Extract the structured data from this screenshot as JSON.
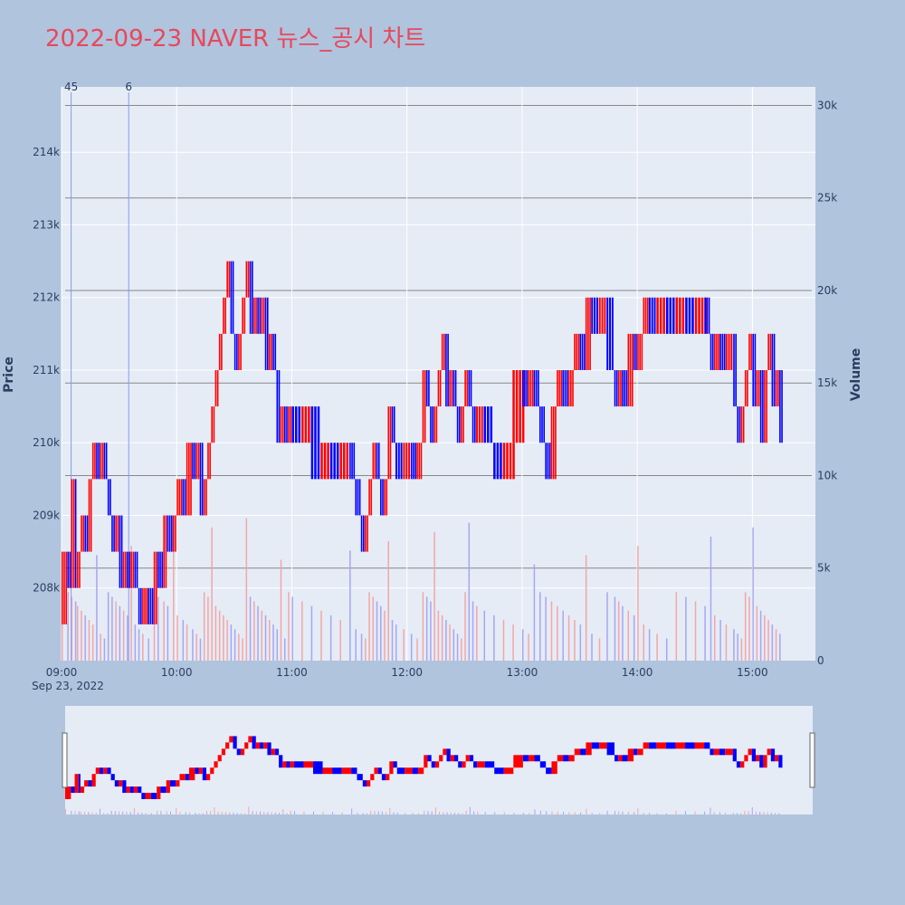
{
  "title": "2022-09-23 NAVER 뉴스_공시 차트",
  "colors": {
    "page_bg": "#b0c4de",
    "plot_bg": "#e5ecf6",
    "title": "#e8485a",
    "up": "#ff0000",
    "down": "#0000ff",
    "up_volume": "#f4a6a6",
    "down_volume": "#a6a6f4",
    "volume_gridline": "#888888",
    "news_line": "#8a9ae8"
  },
  "chart_data": {
    "type": "candlestick+volume",
    "date_label": "Sep 23, 2022",
    "x_range": [
      "09:00",
      "15:30"
    ],
    "x_ticks": [
      "09:00",
      "10:00",
      "11:00",
      "12:00",
      "13:00",
      "14:00",
      "15:00"
    ],
    "y_axis": {
      "title": "Price",
      "range": [
        207000,
        214900
      ],
      "ticks": [
        "208k",
        "209k",
        "210k",
        "211k",
        "212k",
        "213k",
        "214k"
      ]
    },
    "y2_axis": {
      "title": "Volume",
      "range": [
        0,
        31000
      ],
      "ticks": [
        "0",
        "5k",
        "10k",
        "15k",
        "20k",
        "25k",
        "30k"
      ]
    },
    "news_markers": [
      {
        "time": "09:05",
        "label": "45"
      },
      {
        "time": "09:35",
        "label": "6"
      }
    ],
    "price_series": [
      [
        "09:00",
        207500
      ],
      [
        "09:03",
        208500
      ],
      [
        "09:05",
        208000
      ],
      [
        "09:07",
        209500
      ],
      [
        "09:08",
        208000
      ],
      [
        "09:10",
        208500
      ],
      [
        "09:12",
        209000
      ],
      [
        "09:14",
        208500
      ],
      [
        "09:16",
        209500
      ],
      [
        "09:18",
        210000
      ],
      [
        "09:20",
        209500
      ],
      [
        "09:22",
        210000
      ],
      [
        "09:24",
        209500
      ],
      [
        "09:26",
        209000
      ],
      [
        "09:28",
        208500
      ],
      [
        "09:30",
        209000
      ],
      [
        "09:32",
        208000
      ],
      [
        "09:34",
        208500
      ],
      [
        "09:36",
        208000
      ],
      [
        "09:38",
        208500
      ],
      [
        "09:40",
        208000
      ],
      [
        "09:42",
        207500
      ],
      [
        "09:45",
        208000
      ],
      [
        "09:48",
        207500
      ],
      [
        "09:50",
        208500
      ],
      [
        "09:53",
        208000
      ],
      [
        "09:55",
        209000
      ],
      [
        "09:58",
        208500
      ],
      [
        "10:00",
        209000
      ],
      [
        "10:03",
        209500
      ],
      [
        "10:05",
        209000
      ],
      [
        "10:08",
        210000
      ],
      [
        "10:10",
        209500
      ],
      [
        "10:12",
        210000
      ],
      [
        "10:14",
        209000
      ],
      [
        "10:16",
        209500
      ],
      [
        "10:18",
        210000
      ],
      [
        "10:20",
        210500
      ],
      [
        "10:22",
        211000
      ],
      [
        "10:24",
        211500
      ],
      [
        "10:26",
        212000
      ],
      [
        "10:28",
        212500
      ],
      [
        "10:30",
        211500
      ],
      [
        "10:32",
        211000
      ],
      [
        "10:34",
        211500
      ],
      [
        "10:36",
        212000
      ],
      [
        "10:38",
        212500
      ],
      [
        "10:40",
        211500
      ],
      [
        "10:42",
        212000
      ],
      [
        "10:44",
        211500
      ],
      [
        "10:46",
        212000
      ],
      [
        "10:48",
        211000
      ],
      [
        "10:50",
        211500
      ],
      [
        "10:52",
        211000
      ],
      [
        "10:54",
        210000
      ],
      [
        "10:56",
        210500
      ],
      [
        "10:58",
        210000
      ],
      [
        "11:00",
        210500
      ],
      [
        "11:05",
        210000
      ],
      [
        "11:10",
        210500
      ],
      [
        "11:15",
        209500
      ],
      [
        "11:20",
        210000
      ],
      [
        "11:25",
        209500
      ],
      [
        "11:30",
        210000
      ],
      [
        "11:33",
        209500
      ],
      [
        "11:36",
        209000
      ],
      [
        "11:38",
        208500
      ],
      [
        "11:40",
        209000
      ],
      [
        "11:42",
        209500
      ],
      [
        "11:44",
        210000
      ],
      [
        "11:46",
        209500
      ],
      [
        "11:48",
        209000
      ],
      [
        "11:50",
        209500
      ],
      [
        "11:52",
        210500
      ],
      [
        "11:54",
        210000
      ],
      [
        "11:58",
        209500
      ],
      [
        "12:02",
        210000
      ],
      [
        "12:05",
        209500
      ],
      [
        "12:08",
        210000
      ],
      [
        "12:10",
        211000
      ],
      [
        "12:12",
        210500
      ],
      [
        "12:14",
        210000
      ],
      [
        "12:16",
        210500
      ],
      [
        "12:18",
        211000
      ],
      [
        "12:20",
        211500
      ],
      [
        "12:22",
        210500
      ],
      [
        "12:24",
        211000
      ],
      [
        "12:26",
        210500
      ],
      [
        "12:28",
        210000
      ],
      [
        "12:30",
        210500
      ],
      [
        "12:32",
        211000
      ],
      [
        "12:34",
        210500
      ],
      [
        "12:36",
        210000
      ],
      [
        "12:40",
        210500
      ],
      [
        "12:45",
        210000
      ],
      [
        "12:50",
        209500
      ],
      [
        "12:55",
        210000
      ],
      [
        "13:00",
        211000
      ],
      [
        "13:03",
        210500
      ],
      [
        "13:06",
        211000
      ],
      [
        "13:09",
        210500
      ],
      [
        "13:12",
        210000
      ],
      [
        "13:15",
        209500
      ],
      [
        "13:18",
        210500
      ],
      [
        "13:21",
        211000
      ],
      [
        "13:24",
        210500
      ],
      [
        "13:27",
        211000
      ],
      [
        "13:30",
        211500
      ],
      [
        "13:33",
        211000
      ],
      [
        "13:36",
        212000
      ],
      [
        "13:40",
        211500
      ],
      [
        "13:44",
        212000
      ],
      [
        "13:48",
        211000
      ],
      [
        "13:50",
        210500
      ],
      [
        "13:52",
        211000
      ],
      [
        "13:55",
        210500
      ],
      [
        "13:58",
        211500
      ],
      [
        "14:00",
        211000
      ],
      [
        "14:03",
        211500
      ],
      [
        "14:06",
        212000
      ],
      [
        "14:10",
        211500
      ],
      [
        "14:15",
        212000
      ],
      [
        "14:20",
        211500
      ],
      [
        "14:25",
        212000
      ],
      [
        "14:30",
        211500
      ],
      [
        "14:35",
        212000
      ],
      [
        "14:38",
        211500
      ],
      [
        "14:40",
        211000
      ],
      [
        "14:43",
        211500
      ],
      [
        "14:46",
        211000
      ],
      [
        "14:50",
        211500
      ],
      [
        "14:52",
        210500
      ],
      [
        "14:54",
        210000
      ],
      [
        "14:56",
        210500
      ],
      [
        "14:58",
        211000
      ],
      [
        "15:00",
        211500
      ],
      [
        "15:02",
        210500
      ],
      [
        "15:04",
        211000
      ],
      [
        "15:06",
        210000
      ],
      [
        "15:08",
        211000
      ],
      [
        "15:10",
        211500
      ],
      [
        "15:12",
        210500
      ],
      [
        "15:14",
        211000
      ],
      [
        "15:16",
        210000
      ]
    ]
  }
}
